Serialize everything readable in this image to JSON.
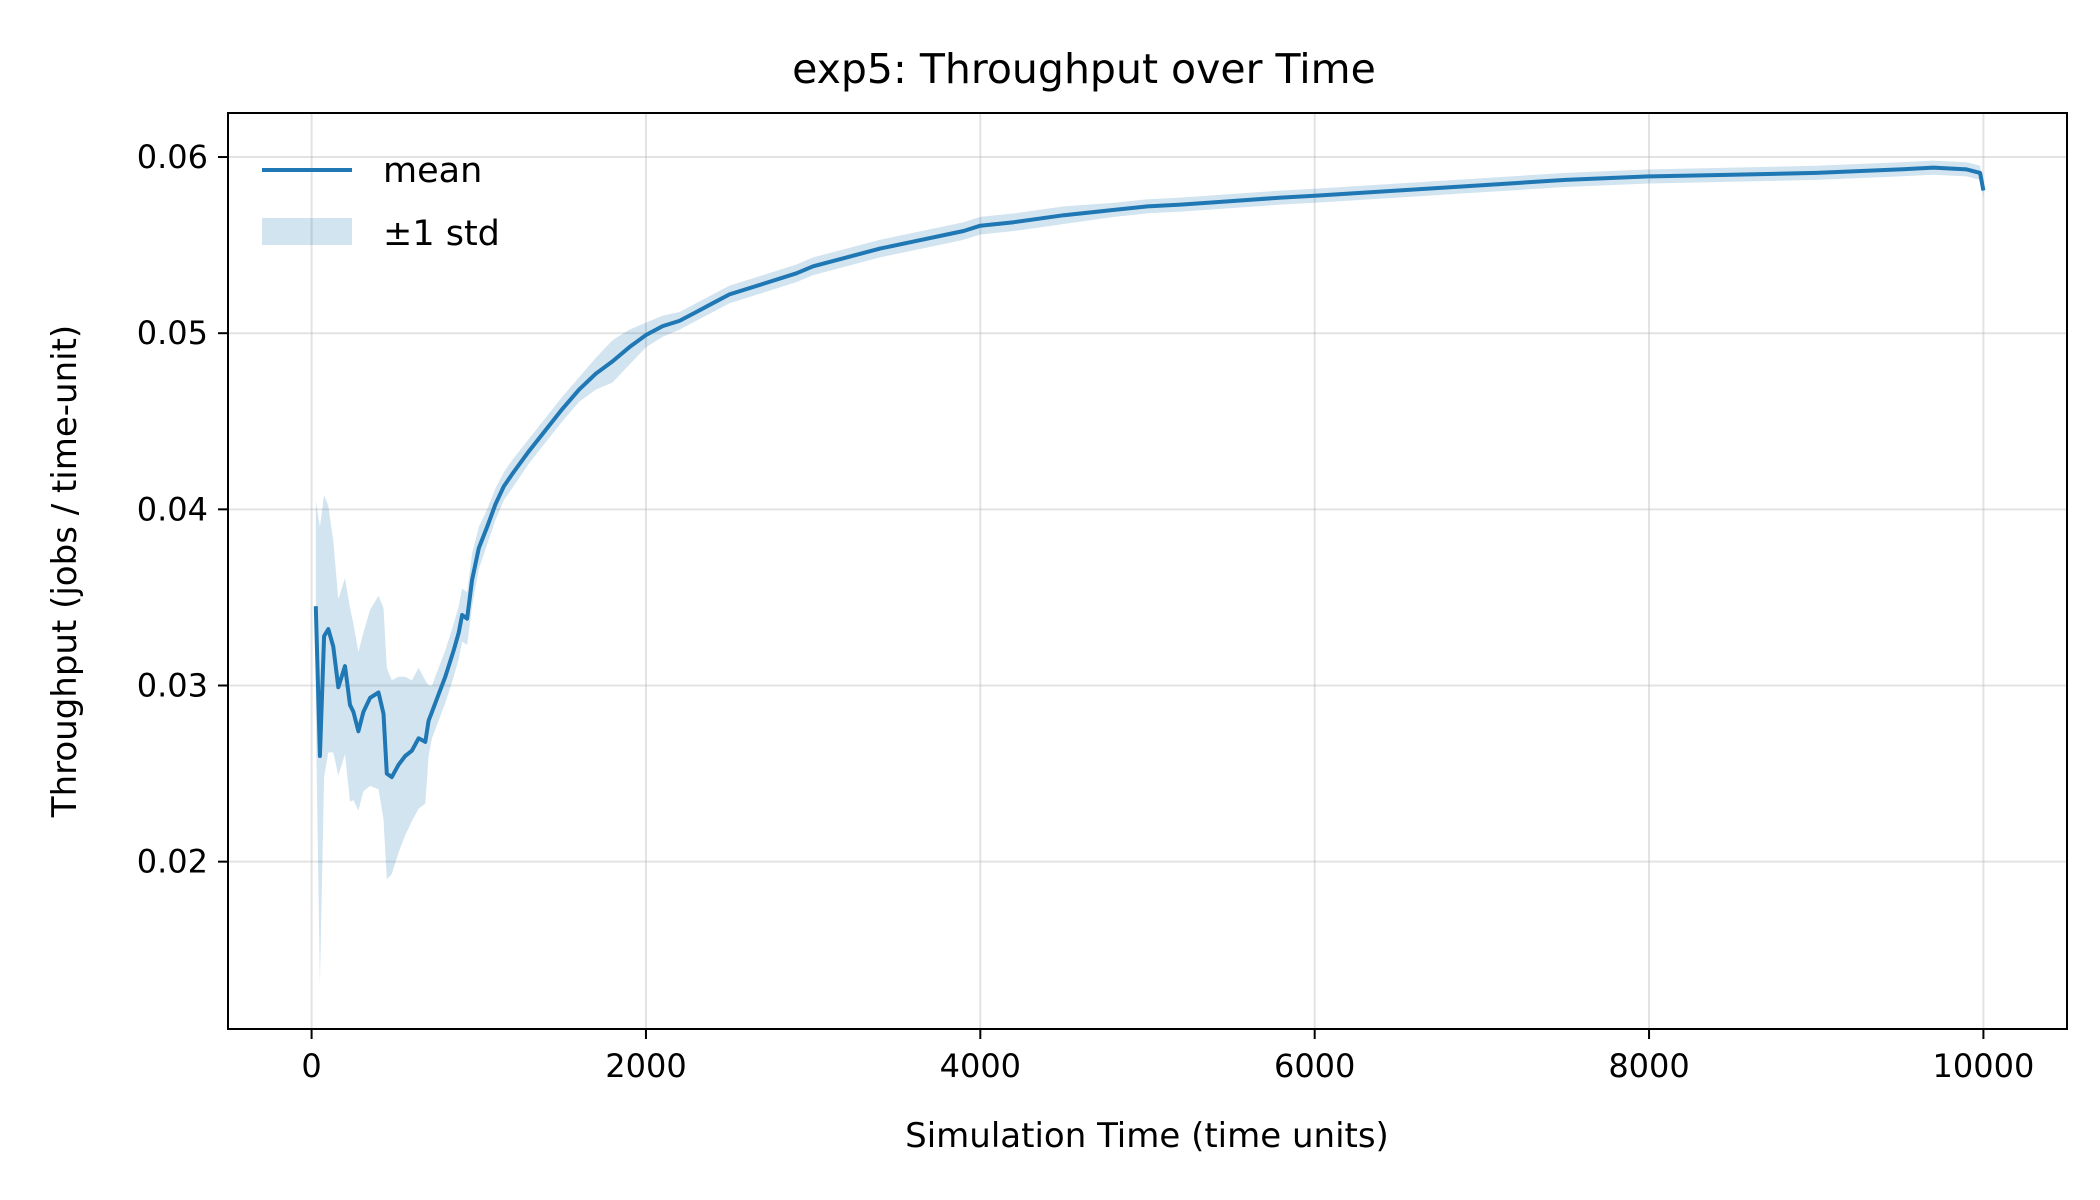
{
  "chart_data": {
    "type": "line",
    "title": "exp5: Throughput over Time",
    "xlabel": "Simulation Time (time units)",
    "ylabel": "Throughput (jobs / time-unit)",
    "xlim": [
      -500,
      10500
    ],
    "ylim": [
      0.0105,
      0.0625
    ],
    "xticks": [
      0,
      2000,
      4000,
      6000,
      8000,
      10000
    ],
    "xtick_labels": [
      "0",
      "2000",
      "4000",
      "6000",
      "8000",
      "10000"
    ],
    "yticks": [
      0.02,
      0.03,
      0.04,
      0.05,
      0.06
    ],
    "ytick_labels": [
      "0.02",
      "0.03",
      "0.04",
      "0.05",
      "0.06"
    ],
    "grid": true,
    "legend_position": "top-left",
    "legend": [
      {
        "label": "mean",
        "kind": "line"
      },
      {
        "label": "±1 std",
        "kind": "band"
      }
    ],
    "colors": {
      "line": "#1f77b4",
      "band": "#1f77b4"
    },
    "series": [
      {
        "name": "mean",
        "x": [
          25,
          50,
          75,
          100,
          130,
          160,
          200,
          230,
          250,
          280,
          310,
          350,
          400,
          430,
          450,
          480,
          520,
          560,
          600,
          640,
          680,
          700,
          720,
          760,
          800,
          850,
          880,
          900,
          930,
          960,
          1000,
          1050,
          1100,
          1150,
          1200,
          1300,
          1400,
          1500,
          1600,
          1700,
          1800,
          1900,
          2000,
          2100,
          2200,
          2300,
          2400,
          2500,
          2700,
          2900,
          3000,
          3200,
          3400,
          3600,
          3800,
          3900,
          4000,
          4200,
          4500,
          4800,
          5000,
          5200,
          5500,
          5800,
          6000,
          6500,
          7000,
          7500,
          8000,
          8500,
          9000,
          9500,
          9700,
          9900,
          9980,
          10000
        ],
        "y": [
          0.0345,
          0.026,
          0.0328,
          0.0332,
          0.0322,
          0.0299,
          0.0311,
          0.0289,
          0.0285,
          0.0274,
          0.0285,
          0.0293,
          0.0296,
          0.0284,
          0.025,
          0.0248,
          0.0255,
          0.026,
          0.0263,
          0.027,
          0.0268,
          0.028,
          0.0285,
          0.0295,
          0.0305,
          0.032,
          0.033,
          0.034,
          0.0338,
          0.036,
          0.0378,
          0.039,
          0.0403,
          0.0413,
          0.042,
          0.0433,
          0.0445,
          0.0457,
          0.0468,
          0.0477,
          0.0484,
          0.0492,
          0.0499,
          0.0504,
          0.0507,
          0.0512,
          0.0517,
          0.0522,
          0.0528,
          0.0534,
          0.0538,
          0.0543,
          0.0548,
          0.0552,
          0.0556,
          0.0558,
          0.0561,
          0.0563,
          0.0567,
          0.057,
          0.0572,
          0.0573,
          0.0575,
          0.0577,
          0.0578,
          0.0581,
          0.0584,
          0.0587,
          0.0589,
          0.059,
          0.0591,
          0.0593,
          0.0594,
          0.0593,
          0.0591,
          0.0581
        ],
        "std": [
          0.006,
          0.013,
          0.008,
          0.007,
          0.006,
          0.005,
          0.005,
          0.0055,
          0.005,
          0.0045,
          0.0045,
          0.005,
          0.0055,
          0.006,
          0.006,
          0.0055,
          0.005,
          0.0045,
          0.004,
          0.004,
          0.0035,
          0.002,
          0.0015,
          0.0015,
          0.0015,
          0.0015,
          0.0015,
          0.0015,
          0.0015,
          0.0015,
          0.0012,
          0.001,
          0.0009,
          0.0008,
          0.0008,
          0.0007,
          0.0007,
          0.0007,
          0.0007,
          0.0009,
          0.0012,
          0.001,
          0.0007,
          0.0006,
          0.0005,
          0.0005,
          0.0005,
          0.0005,
          0.0005,
          0.0005,
          0.0005,
          0.0005,
          0.0005,
          0.0005,
          0.0005,
          0.0005,
          0.0005,
          0.0005,
          0.0005,
          0.0004,
          0.0004,
          0.0004,
          0.0004,
          0.0004,
          0.0004,
          0.0004,
          0.0004,
          0.0004,
          0.0004,
          0.0004,
          0.0004,
          0.0004,
          0.0004,
          0.0004,
          0.0004,
          0.0004
        ]
      }
    ]
  }
}
